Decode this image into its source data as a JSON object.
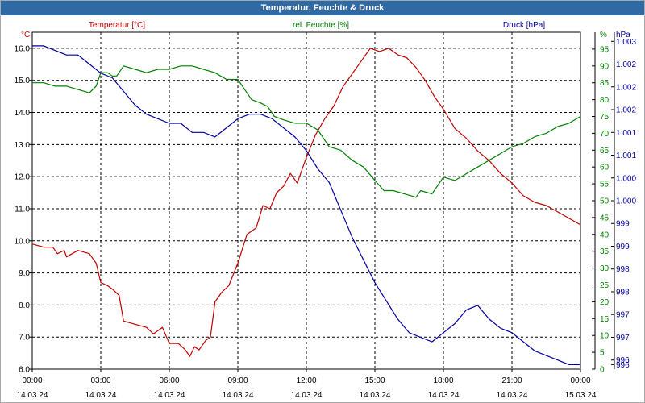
{
  "window": {
    "title": "Temperatur, Feuchte & Druck"
  },
  "chart_data": {
    "type": "line",
    "title": "Temperatur, Feuchte & Druck",
    "grid": true,
    "colors": {
      "temp": "#c00000",
      "hum": "#008000",
      "press": "#0000a0",
      "grid": "#000000"
    },
    "x_ticks": [
      {
        "time": "00:00",
        "date": "14.03.24"
      },
      {
        "time": "03:00",
        "date": "14.03.24"
      },
      {
        "time": "06:00",
        "date": "14.03.24"
      },
      {
        "time": "09:00",
        "date": "14.03.24"
      },
      {
        "time": "12:00",
        "date": "14.03.24"
      },
      {
        "time": "15:00",
        "date": "14.03.24"
      },
      {
        "time": "18:00",
        "date": "14.03.24"
      },
      {
        "time": "21:00",
        "date": "14.03.24"
      },
      {
        "time": "00:00",
        "date": "15.03.24"
      }
    ],
    "x_range_hours": [
      0,
      24
    ],
    "axes": {
      "temp": {
        "label": "Temperatur [°C]",
        "unit": "°C",
        "range": [
          6.0,
          16.5
        ],
        "ticks": [
          "16.0",
          "15.0",
          "14.0",
          "13.0",
          "12.0",
          "11.0",
          "10.0",
          "9.0",
          "8.0",
          "7.0",
          "6.0"
        ],
        "tick_values": [
          16,
          15,
          14,
          13,
          12,
          11,
          10,
          9,
          8,
          7,
          6
        ]
      },
      "hum": {
        "label": "rel. Feuchte [%]",
        "unit": "%",
        "range": [
          0,
          100
        ],
        "ticks": [
          "95",
          "90",
          "85",
          "80",
          "75",
          "70",
          "65",
          "60",
          "55",
          "50",
          "45",
          "40",
          "35",
          "30",
          "25",
          "20",
          "15",
          "10",
          "5",
          "0"
        ],
        "tick_values": [
          95,
          90,
          85,
          80,
          75,
          70,
          65,
          60,
          55,
          50,
          45,
          40,
          35,
          30,
          25,
          20,
          15,
          10,
          5,
          0
        ]
      },
      "press": {
        "label": "Druck [hPa]",
        "unit": "hPa",
        "range": [
          995.8,
          1003.2
        ],
        "ticks": [
          "1.003",
          "1.002",
          "1.002",
          "1.002",
          "1.001",
          "1.001",
          "1.000",
          "1.000",
          "999",
          "999",
          "998",
          "998",
          "997",
          "997",
          "996",
          "996"
        ],
        "tick_values": [
          1003,
          1002.5,
          1002,
          1001.5,
          1001,
          1000.5,
          1000,
          999.5,
          999,
          998.5,
          998,
          997.5,
          997,
          996.5,
          996,
          995.9
        ]
      }
    },
    "series": [
      {
        "name": "Temperatur [°C]",
        "axis": "temp",
        "points": [
          [
            0,
            9.9
          ],
          [
            0.5,
            9.8
          ],
          [
            0.9,
            9.8
          ],
          [
            1.1,
            9.6
          ],
          [
            1.4,
            9.7
          ],
          [
            1.5,
            9.5
          ],
          [
            2,
            9.7
          ],
          [
            2.5,
            9.6
          ],
          [
            2.8,
            9.3
          ],
          [
            3.0,
            8.7
          ],
          [
            3.3,
            8.6
          ],
          [
            3.5,
            8.5
          ],
          [
            3.8,
            8.3
          ],
          [
            4.0,
            7.5
          ],
          [
            4.5,
            7.4
          ],
          [
            5.0,
            7.3
          ],
          [
            5.3,
            7.1
          ],
          [
            5.7,
            7.3
          ],
          [
            6.0,
            6.8
          ],
          [
            6.4,
            6.8
          ],
          [
            6.7,
            6.6
          ],
          [
            6.9,
            6.4
          ],
          [
            7.1,
            6.7
          ],
          [
            7.3,
            6.6
          ],
          [
            7.6,
            6.9
          ],
          [
            7.8,
            7.0
          ],
          [
            8.0,
            8.1
          ],
          [
            8.3,
            8.4
          ],
          [
            8.6,
            8.6
          ],
          [
            9.0,
            9.3
          ],
          [
            9.4,
            10.2
          ],
          [
            9.8,
            10.4
          ],
          [
            10.1,
            11.1
          ],
          [
            10.4,
            11.0
          ],
          [
            10.7,
            11.5
          ],
          [
            11.0,
            11.7
          ],
          [
            11.3,
            12.1
          ],
          [
            11.6,
            11.8
          ],
          [
            12.0,
            12.6
          ],
          [
            12.4,
            13.3
          ],
          [
            12.8,
            13.8
          ],
          [
            13.2,
            14.2
          ],
          [
            13.6,
            14.8
          ],
          [
            14.0,
            15.2
          ],
          [
            14.4,
            15.6
          ],
          [
            14.8,
            16.0
          ],
          [
            15.2,
            15.9
          ],
          [
            15.6,
            16.0
          ],
          [
            16.0,
            15.8
          ],
          [
            16.4,
            15.7
          ],
          [
            16.8,
            15.4
          ],
          [
            17.2,
            15.0
          ],
          [
            17.6,
            14.5
          ],
          [
            18.0,
            14.1
          ],
          [
            18.5,
            13.5
          ],
          [
            19.0,
            13.2
          ],
          [
            19.5,
            12.8
          ],
          [
            20.0,
            12.5
          ],
          [
            20.5,
            12.1
          ],
          [
            21.0,
            11.8
          ],
          [
            21.5,
            11.4
          ],
          [
            22.0,
            11.2
          ],
          [
            22.5,
            11.1
          ],
          [
            23.0,
            10.9
          ],
          [
            23.5,
            10.7
          ],
          [
            24.0,
            10.5
          ]
        ]
      },
      {
        "name": "rel. Feuchte [%]",
        "axis": "hum",
        "points": [
          [
            0,
            85
          ],
          [
            0.5,
            85
          ],
          [
            1.0,
            84
          ],
          [
            1.5,
            84
          ],
          [
            2.0,
            83
          ],
          [
            2.5,
            82
          ],
          [
            2.8,
            84
          ],
          [
            3.0,
            88
          ],
          [
            3.3,
            88
          ],
          [
            3.5,
            87
          ],
          [
            3.7,
            87
          ],
          [
            4.0,
            90
          ],
          [
            4.5,
            89
          ],
          [
            5.0,
            88
          ],
          [
            5.5,
            89
          ],
          [
            6.0,
            89
          ],
          [
            6.5,
            90
          ],
          [
            7.0,
            90
          ],
          [
            7.5,
            89
          ],
          [
            8.0,
            88
          ],
          [
            8.5,
            86
          ],
          [
            9.0,
            86
          ],
          [
            9.3,
            83
          ],
          [
            9.6,
            80
          ],
          [
            10.0,
            79
          ],
          [
            10.3,
            78
          ],
          [
            10.6,
            75
          ],
          [
            11.0,
            74
          ],
          [
            11.5,
            73
          ],
          [
            12.0,
            73
          ],
          [
            12.5,
            71
          ],
          [
            13.0,
            66
          ],
          [
            13.5,
            65
          ],
          [
            14.0,
            62
          ],
          [
            14.5,
            60
          ],
          [
            15.0,
            56
          ],
          [
            15.4,
            53
          ],
          [
            15.8,
            53
          ],
          [
            16.3,
            52
          ],
          [
            16.8,
            51
          ],
          [
            17.0,
            53
          ],
          [
            17.5,
            52
          ],
          [
            18.0,
            57
          ],
          [
            18.5,
            56
          ],
          [
            19.0,
            58
          ],
          [
            19.5,
            60
          ],
          [
            20.0,
            62
          ],
          [
            20.5,
            64
          ],
          [
            21.0,
            66
          ],
          [
            21.5,
            67
          ],
          [
            22.0,
            69
          ],
          [
            22.5,
            70
          ],
          [
            23.0,
            72
          ],
          [
            23.5,
            73
          ],
          [
            24.0,
            75
          ]
        ]
      },
      {
        "name": "Druck [hPa]",
        "axis": "press",
        "points": [
          [
            0,
            1002.9
          ],
          [
            0.5,
            1002.9
          ],
          [
            1.0,
            1002.8
          ],
          [
            1.5,
            1002.7
          ],
          [
            2.0,
            1002.7
          ],
          [
            2.5,
            1002.5
          ],
          [
            3.0,
            1002.3
          ],
          [
            3.5,
            1002.2
          ],
          [
            4.0,
            1001.9
          ],
          [
            4.5,
            1001.6
          ],
          [
            5.0,
            1001.4
          ],
          [
            5.5,
            1001.3
          ],
          [
            6.0,
            1001.2
          ],
          [
            6.5,
            1001.2
          ],
          [
            7.0,
            1001.0
          ],
          [
            7.5,
            1001.0
          ],
          [
            8.0,
            1000.9
          ],
          [
            8.5,
            1001.1
          ],
          [
            9.0,
            1001.3
          ],
          [
            9.5,
            1001.4
          ],
          [
            10.0,
            1001.4
          ],
          [
            10.5,
            1001.3
          ],
          [
            11.0,
            1001.1
          ],
          [
            11.5,
            1000.9
          ],
          [
            12.0,
            1000.6
          ],
          [
            12.5,
            1000.2
          ],
          [
            13.0,
            999.9
          ],
          [
            13.5,
            999.3
          ],
          [
            14.0,
            998.7
          ],
          [
            14.5,
            998.2
          ],
          [
            15.0,
            997.7
          ],
          [
            15.5,
            997.3
          ],
          [
            16.0,
            996.9
          ],
          [
            16.5,
            996.6
          ],
          [
            17.0,
            996.5
          ],
          [
            17.5,
            996.4
          ],
          [
            18.0,
            996.6
          ],
          [
            18.5,
            996.8
          ],
          [
            19.0,
            997.1
          ],
          [
            19.5,
            997.2
          ],
          [
            20.0,
            996.9
          ],
          [
            20.5,
            996.7
          ],
          [
            21.0,
            996.6
          ],
          [
            21.5,
            996.4
          ],
          [
            22.0,
            996.2
          ],
          [
            22.5,
            996.1
          ],
          [
            23.0,
            996.0
          ],
          [
            23.5,
            995.9
          ],
          [
            24.0,
            995.9
          ]
        ]
      }
    ]
  }
}
